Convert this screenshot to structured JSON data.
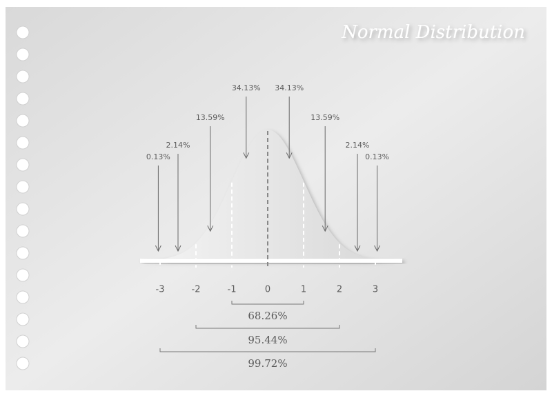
{
  "title": "Normal Distribution",
  "segment_labels": [
    "0.13%",
    "2.14%",
    "13.59%",
    "34.13%",
    "34.13%",
    "13.59%",
    "2.14%",
    "0.13%"
  ],
  "axis_labels": [
    "-3",
    "-2",
    "-1",
    "0",
    "1",
    "2",
    "3"
  ],
  "ranges": [
    "68.26%",
    "95.44%",
    "99.72%"
  ]
}
